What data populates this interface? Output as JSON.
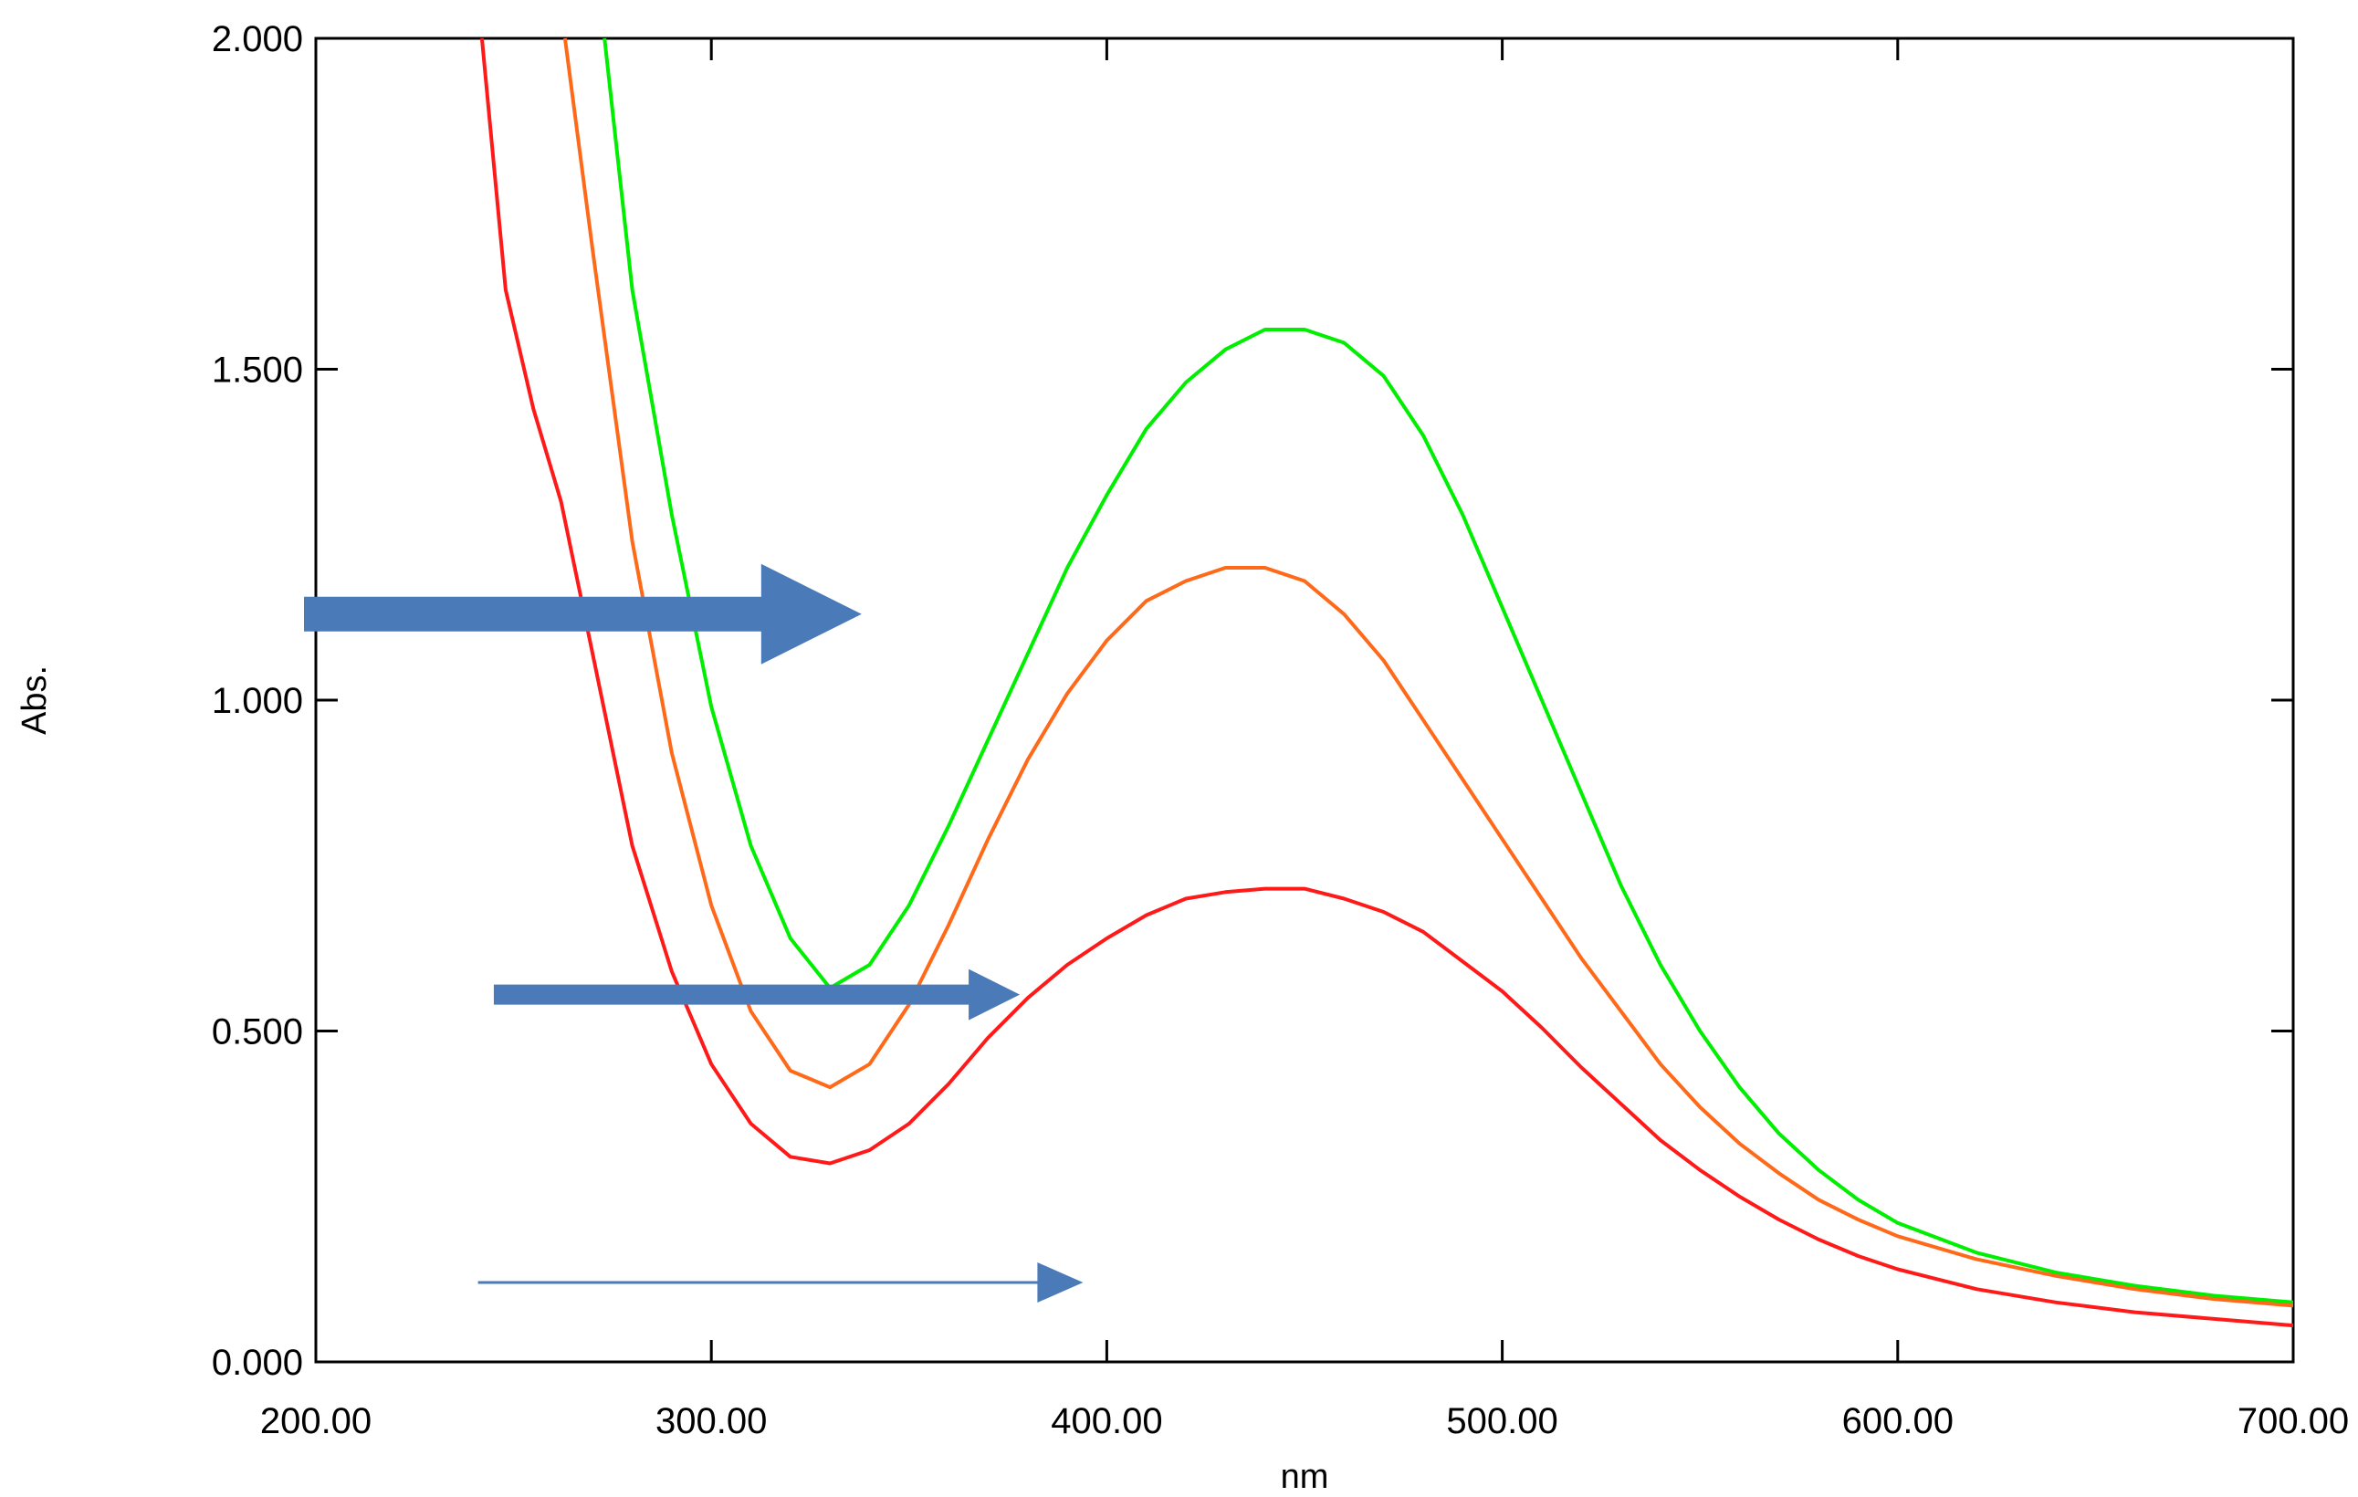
{
  "chart_data": {
    "type": "line",
    "title": "",
    "xlabel": "nm",
    "ylabel": "Abs.",
    "xlim": [
      200,
      700
    ],
    "ylim": [
      0,
      2
    ],
    "x_ticks": [
      200,
      300,
      400,
      500,
      600,
      700
    ],
    "x_tick_labels": [
      "200.00",
      "300.00",
      "400.00",
      "500.00",
      "600.00",
      "700.00"
    ],
    "y_ticks": [
      0,
      0.5,
      1,
      1.5,
      2
    ],
    "y_tick_labels": [
      "0.000",
      "0.500",
      "1.000",
      "1.500",
      "2.000"
    ],
    "grid": false,
    "legend": "none",
    "series": [
      {
        "color": "#00ee00",
        "x": [
          273,
          280,
          290,
          300,
          310,
          320,
          330,
          340,
          350,
          360,
          370,
          380,
          390,
          400,
          410,
          420,
          430,
          440,
          450,
          460,
          470,
          480,
          490,
          500,
          510,
          520,
          530,
          540,
          550,
          560,
          570,
          580,
          590,
          600,
          620,
          640,
          660,
          680,
          700
        ],
        "y": [
          2.0,
          1.62,
          1.28,
          0.99,
          0.78,
          0.64,
          0.565,
          0.6,
          0.69,
          0.81,
          0.94,
          1.07,
          1.2,
          1.31,
          1.41,
          1.48,
          1.53,
          1.56,
          1.56,
          1.54,
          1.49,
          1.4,
          1.28,
          1.14,
          1.0,
          0.86,
          0.72,
          0.6,
          0.5,
          0.415,
          0.345,
          0.29,
          0.245,
          0.21,
          0.165,
          0.135,
          0.115,
          0.1,
          0.09
        ]
      },
      {
        "color": "#ff6a1a",
        "x": [
          263,
          270,
          280,
          290,
          300,
          310,
          320,
          330,
          340,
          350,
          360,
          370,
          380,
          390,
          400,
          410,
          420,
          430,
          440,
          450,
          460,
          470,
          480,
          490,
          500,
          510,
          520,
          530,
          540,
          550,
          560,
          570,
          580,
          590,
          600,
          620,
          640,
          660,
          680,
          700
        ],
        "y": [
          2.0,
          1.68,
          1.24,
          0.92,
          0.69,
          0.53,
          0.44,
          0.415,
          0.45,
          0.54,
          0.66,
          0.79,
          0.91,
          1.01,
          1.09,
          1.15,
          1.18,
          1.2,
          1.2,
          1.18,
          1.13,
          1.06,
          0.97,
          0.88,
          0.79,
          0.7,
          0.61,
          0.53,
          0.45,
          0.385,
          0.33,
          0.285,
          0.245,
          0.215,
          0.19,
          0.155,
          0.13,
          0.11,
          0.095,
          0.085
        ]
      },
      {
        "color": "#ff1a1a",
        "x": [
          242,
          248,
          255,
          262,
          270,
          280,
          290,
          300,
          310,
          320,
          330,
          340,
          350,
          360,
          370,
          380,
          390,
          400,
          410,
          420,
          430,
          440,
          450,
          460,
          470,
          480,
          490,
          500,
          510,
          520,
          530,
          540,
          550,
          560,
          570,
          580,
          590,
          600,
          620,
          640,
          660,
          680,
          700
        ],
        "y": [
          2.0,
          1.62,
          1.44,
          1.3,
          1.07,
          0.78,
          0.59,
          0.45,
          0.36,
          0.31,
          0.3,
          0.32,
          0.36,
          0.42,
          0.49,
          0.55,
          0.6,
          0.64,
          0.675,
          0.7,
          0.71,
          0.715,
          0.715,
          0.7,
          0.68,
          0.65,
          0.605,
          0.56,
          0.505,
          0.445,
          0.39,
          0.335,
          0.29,
          0.25,
          0.215,
          0.185,
          0.16,
          0.14,
          0.11,
          0.09,
          0.075,
          0.065,
          0.055
        ]
      }
    ],
    "annotations": [
      {
        "type": "arrow",
        "style": "thick",
        "color": "#4a7ab7",
        "x_start": 197,
        "x_end": 338,
        "y": 1.13
      },
      {
        "type": "arrow",
        "style": "medium",
        "color": "#4a7ab7",
        "x_start": 245,
        "x_end": 378,
        "y": 0.555
      },
      {
        "type": "arrow",
        "style": "thin",
        "color": "#4a7ab7",
        "x_start": 241,
        "x_end": 394,
        "y": 0.12
      }
    ]
  }
}
